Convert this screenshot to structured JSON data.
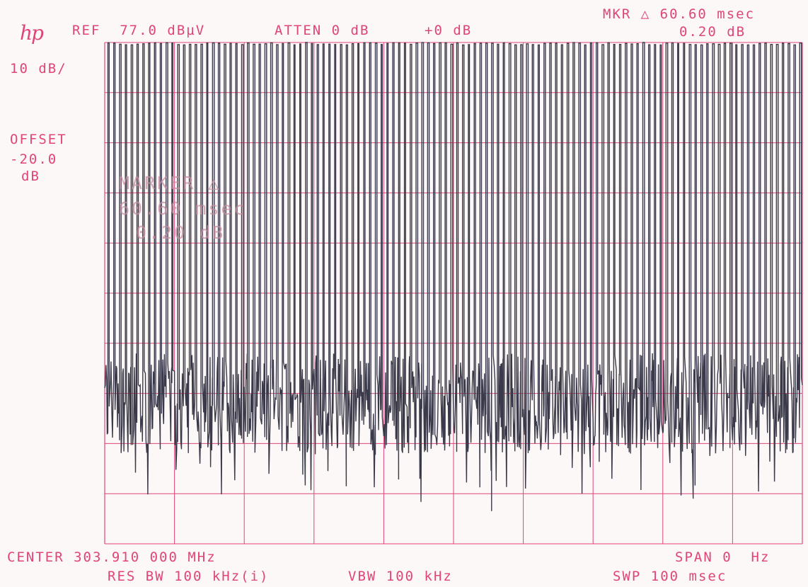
{
  "header": {
    "brand": "hp",
    "ref": "REF  77.0 dBµV",
    "atten": "ATTEN 0 dB",
    "offset_db": "+0 dB",
    "mkr_line1": "MKR △ 60.60 msec",
    "mkr_line2": "0.20 dB"
  },
  "left_panel": {
    "scale": "10 dB/",
    "offset_label": "OFFSET",
    "offset_value": "-20.0",
    "offset_unit": "dB"
  },
  "marker_box": {
    "line1": "MARKER △",
    "line2": "60.60 msec",
    "line3": "0.20 dB"
  },
  "footer": {
    "center": "CENTER 303.910 000 MHz",
    "span": "SPAN 0  Hz",
    "res_bw": "RES BW 100 kHz(i)",
    "vbw": "VBW 100 kHz",
    "sweep": "SWP 100 msec"
  },
  "colors": {
    "grid": "#e0457a",
    "trace": "#3b3a4a",
    "background": "#fbf8f7"
  },
  "chart_data": {
    "type": "line",
    "xlim": [
      0,
      100
    ],
    "ylim": [
      -23,
      77
    ],
    "y_grid_step": 10,
    "x_grid_divisions": 10,
    "grid": true,
    "x_unit": "msec",
    "y_unit": "dBµV",
    "pulse_count": 120,
    "pulse_top": 77,
    "noise_floor": [
      -5,
      15
    ]
  }
}
